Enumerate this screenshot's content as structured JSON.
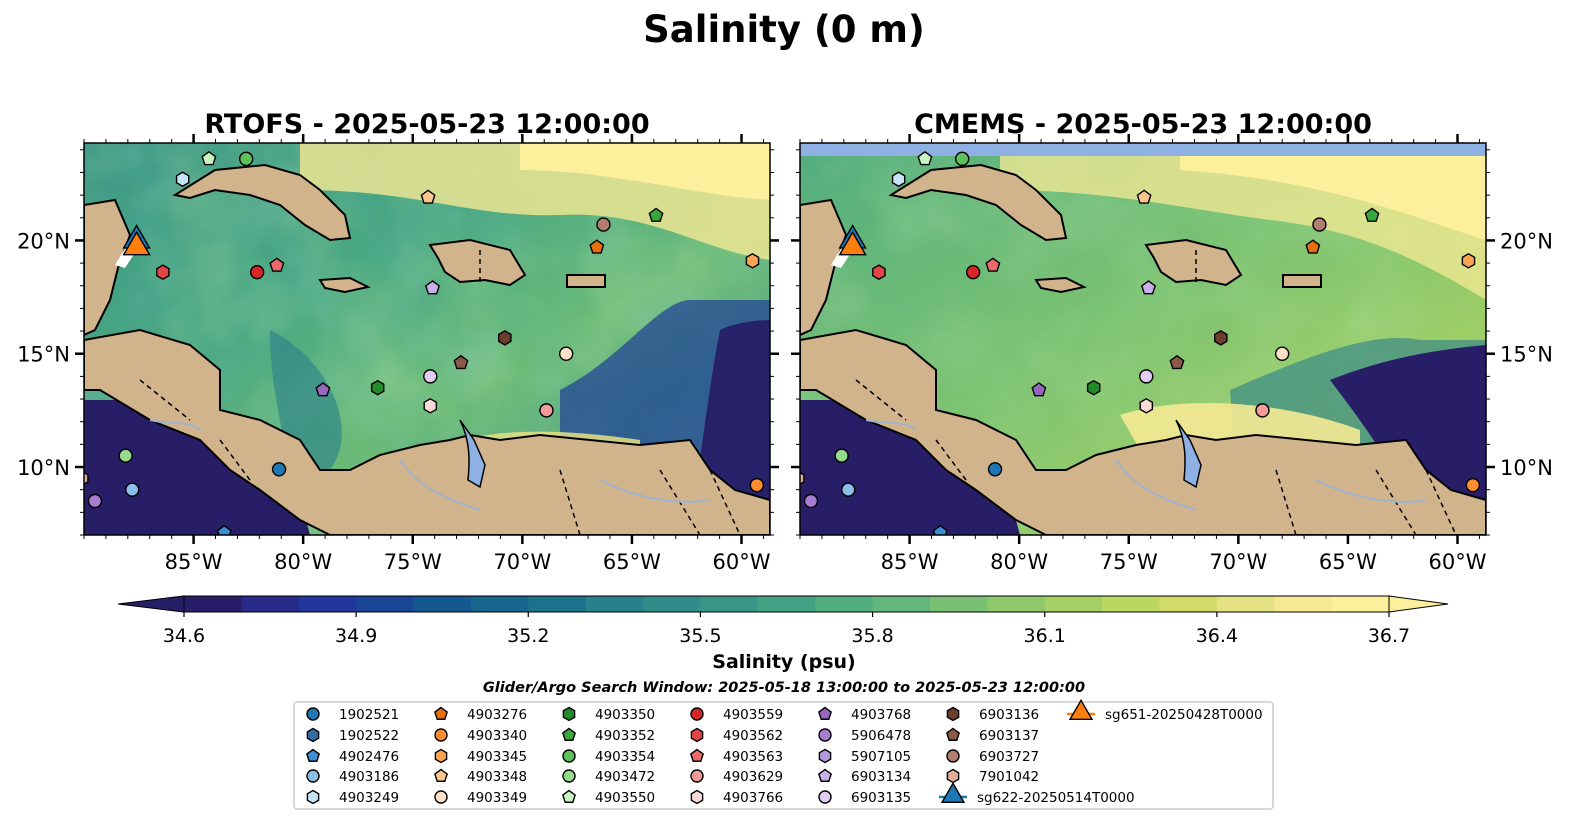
{
  "figure": {
    "suptitle": "Salinity (0 m)",
    "colorbar_label": "Salinity (psu)",
    "search_window": "Glider/Argo Search Window: 2025-05-18 13:00:00 to 2025-05-23 12:00:00"
  },
  "chart_data": {
    "type": "heatmap",
    "title": "Salinity (0 m)",
    "variable": "Sea surface salinity",
    "units": "psu",
    "color_scale": {
      "min": 34.6,
      "max": 36.7,
      "step": 0.075,
      "extend": "both",
      "ticks": [
        34.6,
        34.9,
        35.2,
        35.5,
        35.8,
        36.1,
        36.4,
        36.7
      ],
      "colors": [
        "#271e67",
        "#282a8a",
        "#22379b",
        "#1a4697",
        "#155791",
        "#17668e",
        "#1d738c",
        "#27808b",
        "#308b89",
        "#3a9787",
        "#44a284",
        "#52ad7f",
        "#63b77a",
        "#7ac073",
        "#8fc86b",
        "#a6d065",
        "#bcd662",
        "#d2dc6a",
        "#e5e283",
        "#f5e994",
        "#fdf09c"
      ],
      "under_color": "#271e67",
      "over_color": "#fdf09c"
    },
    "land_color": "#d2b48c",
    "missing_color": "#8fb0e3",
    "panels": [
      {
        "title": "RTOFS - 2025-05-23 12:00:00",
        "model": "RTOFS"
      },
      {
        "title": "CMEMS - 2025-05-23 12:00:00",
        "model": "CMEMS"
      }
    ],
    "lon_ticks": [
      {
        "value": -85,
        "label": "85°W"
      },
      {
        "value": -80,
        "label": "80°W"
      },
      {
        "value": -75,
        "label": "75°W"
      },
      {
        "value": -70,
        "label": "70°W"
      },
      {
        "value": -65,
        "label": "65°W"
      },
      {
        "value": -60,
        "label": "60°W"
      }
    ],
    "lat_ticks": [
      {
        "value": 10,
        "label": "10°N"
      },
      {
        "value": 15,
        "label": "15°N"
      },
      {
        "value": 20,
        "label": "20°N"
      }
    ],
    "extent": {
      "lon": [
        -90,
        -58.7
      ],
      "lat": [
        7,
        24.3
      ]
    },
    "platforms": [
      {
        "id": "1902521",
        "marker": "circle",
        "color": "#1f77b4",
        "lon": -81.1,
        "lat": 9.9
      },
      {
        "id": "1902522",
        "marker": "hexagon",
        "color": "#2f6ea5",
        "lon": -87.4,
        "lat": 6.5
      },
      {
        "id": "4902476",
        "marker": "pentagon",
        "color": "#3b8fd4",
        "lon": -83.6,
        "lat": 7.1
      },
      {
        "id": "4903186",
        "marker": "circle",
        "color": "#8bbfe8",
        "lon": -87.8,
        "lat": 9.0
      },
      {
        "id": "4903249",
        "marker": "hexagon",
        "color": "#c6e3f7",
        "lon": -85.5,
        "lat": 22.7
      },
      {
        "id": "4903276",
        "marker": "pentagon",
        "color": "#e6700f",
        "lon": -66.6,
        "lat": 19.7
      },
      {
        "id": "4903340",
        "marker": "circle",
        "color": "#ff8c2e",
        "lon": -59.3,
        "lat": 9.2
      },
      {
        "id": "4903345",
        "marker": "hexagon",
        "color": "#fca455",
        "lon": -59.5,
        "lat": 19.1
      },
      {
        "id": "4903348",
        "marker": "pentagon",
        "color": "#fdc68c",
        "lon": -74.3,
        "lat": 21.9
      },
      {
        "id": "4903349",
        "marker": "circle",
        "color": "#fde0c5",
        "lon": -68.0,
        "lat": 15.0
      },
      {
        "id": "4903350",
        "marker": "hexagon",
        "color": "#238b2a",
        "lon": -76.6,
        "lat": 13.5
      },
      {
        "id": "4903352",
        "marker": "pentagon",
        "color": "#3aa63e",
        "lon": -63.9,
        "lat": 21.1
      },
      {
        "id": "4903354",
        "marker": "circle",
        "color": "#5dc25a",
        "lon": -82.6,
        "lat": 23.6
      },
      {
        "id": "4903472",
        "marker": "circle",
        "color": "#95d98a",
        "lon": -88.1,
        "lat": 10.5
      },
      {
        "id": "4903550",
        "marker": "pentagon",
        "color": "#c8f5bf",
        "lon": -84.3,
        "lat": 23.6
      },
      {
        "id": "4903559",
        "marker": "circle",
        "color": "#d62728",
        "lon": -82.1,
        "lat": 18.6
      },
      {
        "id": "4903562",
        "marker": "hexagon",
        "color": "#e04646",
        "lon": -86.4,
        "lat": 18.6
      },
      {
        "id": "4903563",
        "marker": "pentagon",
        "color": "#ee6a6a",
        "lon": -81.2,
        "lat": 18.9
      },
      {
        "id": "4903629",
        "marker": "circle",
        "color": "#f59a9a",
        "lon": -68.9,
        "lat": 12.5
      },
      {
        "id": "4903766",
        "marker": "hexagon",
        "color": "#fbd9d9",
        "lon": -74.2,
        "lat": 12.7
      },
      {
        "id": "4903768",
        "marker": "pentagon",
        "color": "#9467bd",
        "lon": -79.1,
        "lat": 13.4
      },
      {
        "id": "5906478",
        "marker": "circle",
        "color": "#a77dd0",
        "lon": -89.5,
        "lat": 8.5
      },
      {
        "id": "5907105",
        "marker": "hexagon",
        "color": "#b898dc",
        "lon": -85.3,
        "lat": 6.6
      },
      {
        "id": "6903134",
        "marker": "pentagon",
        "color": "#c9b0e9",
        "lon": -74.1,
        "lat": 17.9
      },
      {
        "id": "6903135",
        "marker": "circle",
        "color": "#e2cdf5",
        "lon": -74.2,
        "lat": 14.0
      },
      {
        "id": "6903136",
        "marker": "hexagon",
        "color": "#6b3f2c",
        "lon": -70.8,
        "lat": 15.7
      },
      {
        "id": "6903137",
        "marker": "pentagon",
        "color": "#8c5a48",
        "lon": -72.8,
        "lat": 14.6
      },
      {
        "id": "6903727",
        "marker": "circle",
        "color": "#b07f6f",
        "lon": -66.3,
        "lat": 20.7
      },
      {
        "id": "7901042",
        "marker": "hexagon",
        "color": "#e4ae9c",
        "lon": -90.1,
        "lat": 9.5
      },
      {
        "id": "sg622-20250514T0000",
        "marker": "triangle",
        "color": "#1f77b4",
        "lon": -87.6,
        "lat": 20.0,
        "track": true
      },
      {
        "id": "sg651-20250428T0000",
        "marker": "triangle",
        "color": "#ff7f0e",
        "lon": -87.6,
        "lat": 19.7,
        "track": true
      }
    ]
  }
}
